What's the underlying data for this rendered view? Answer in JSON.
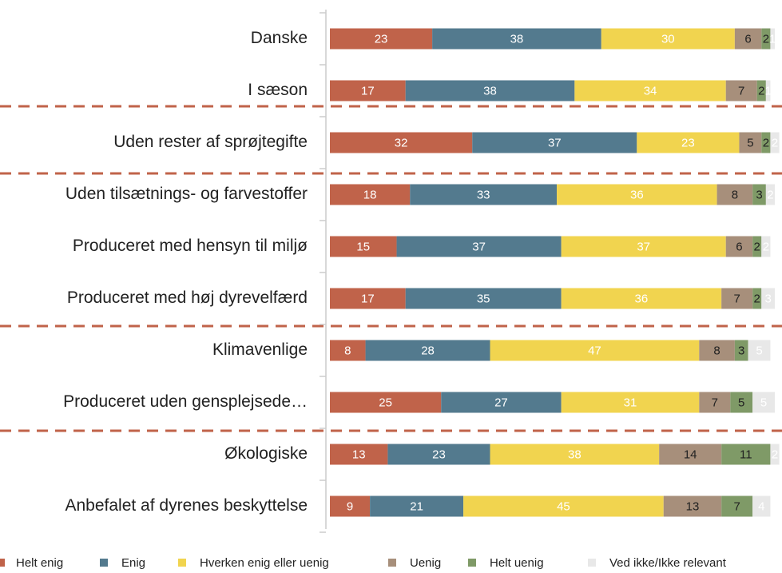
{
  "chart_data": {
    "type": "stacked-barh",
    "categories": [
      "Danske",
      "I sæson",
      "Uden rester af sprøjtegifte",
      "Uden tilsætnings- og farvestoffer",
      "Produceret med hensyn til miljø",
      "Produceret med høj dyrevelfærd",
      "Klimavenlige",
      "Produceret uden gensplejsede…",
      "Økologiske",
      "Anbefalet af dyrenes beskyttelse"
    ],
    "series": [
      {
        "name": "Helt enig",
        "color": "#c0634a",
        "label_color": "#ffffff",
        "values": [
          23,
          17,
          32,
          18,
          15,
          17,
          8,
          25,
          13,
          9
        ]
      },
      {
        "name": "Enig",
        "color": "#537a8e",
        "label_color": "#ffffff",
        "values": [
          38,
          38,
          37,
          33,
          37,
          35,
          28,
          27,
          23,
          21
        ]
      },
      {
        "name": "Hverken enig eller uenig",
        "color": "#f1d44f",
        "label_color": "#ffffff",
        "values": [
          30,
          34,
          23,
          36,
          37,
          36,
          47,
          31,
          38,
          45
        ]
      },
      {
        "name": "Uenig",
        "color": "#a78f7b",
        "label_color": "#222222",
        "values": [
          6,
          7,
          5,
          8,
          6,
          7,
          8,
          7,
          14,
          13
        ]
      },
      {
        "name": "Helt uenig",
        "color": "#7f9a67",
        "label_color": "#222222",
        "values": [
          2,
          2,
          2,
          3,
          2,
          2,
          3,
          5,
          11,
          7
        ]
      },
      {
        "name": "Ved ikke/Ikke relevant",
        "color": "#e8e8e8",
        "label_color": "#ffffff",
        "values": [
          1,
          1,
          2,
          2,
          2,
          3,
          5,
          5,
          2,
          4
        ]
      }
    ],
    "xlim": [
      0,
      100
    ]
  }
}
